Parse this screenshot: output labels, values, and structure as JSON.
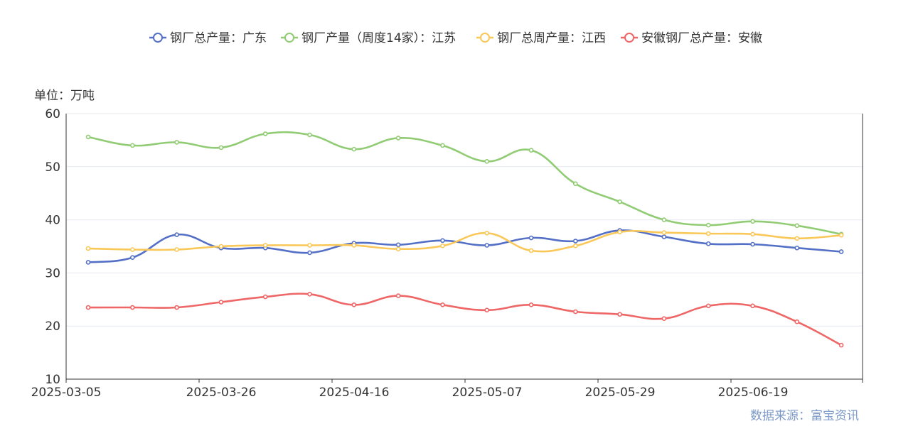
{
  "chart_data": {
    "type": "line",
    "unit_label": "单位：万吨",
    "source": "数据来源：富宝资讯",
    "ylim": [
      10,
      60
    ],
    "yticks": [
      10,
      20,
      30,
      40,
      50,
      60
    ],
    "x": [
      "2025-03-05",
      "2025-03-12",
      "2025-03-19",
      "2025-03-26",
      "2025-04-02",
      "2025-04-09",
      "2025-04-16",
      "2025-04-23",
      "2025-04-30",
      "2025-05-07",
      "2025-05-14",
      "2025-05-21",
      "2025-05-28",
      "2025-06-04",
      "2025-06-11",
      "2025-06-18",
      "2025-06-25",
      "2025-07-02"
    ],
    "xtick_labels": [
      "2025-03-05",
      "2025-03-26",
      "2025-04-16",
      "2025-05-07",
      "2025-05-29",
      "2025-06-19"
    ],
    "grid": true,
    "legend_position": "top-center",
    "series": [
      {
        "name": "钢厂总产量：广东",
        "color": "#5470c6",
        "values": [
          32.0,
          32.9,
          37.2,
          34.7,
          34.7,
          33.8,
          35.6,
          35.3,
          36.1,
          35.2,
          36.6,
          36.0,
          38.0,
          36.8,
          35.5,
          35.4,
          34.7,
          34.0
        ]
      },
      {
        "name": "钢厂产量（周度14家）：江苏",
        "color": "#91cc75",
        "values": [
          55.6,
          54.0,
          54.6,
          53.6,
          56.2,
          56.0,
          53.3,
          55.4,
          54.0,
          51.0,
          53.1,
          46.8,
          43.4,
          40.0,
          39.0,
          39.7,
          38.9,
          37.3
        ]
      },
      {
        "name": "钢厂总周产量：江西",
        "color": "#fac858",
        "values": [
          34.6,
          34.4,
          34.4,
          35.0,
          35.2,
          35.2,
          35.2,
          34.5,
          35.1,
          37.5,
          34.2,
          35.1,
          37.7,
          37.6,
          37.4,
          37.3,
          36.5,
          37.1
        ]
      },
      {
        "name": "安徽钢厂总产量：安徽",
        "color": "#ee6666",
        "values": [
          23.5,
          23.5,
          23.5,
          24.5,
          25.5,
          26.0,
          24.0,
          25.7,
          24.0,
          23.0,
          24.0,
          22.7,
          22.2,
          21.4,
          23.8,
          23.8,
          20.8,
          16.4
        ]
      }
    ]
  }
}
